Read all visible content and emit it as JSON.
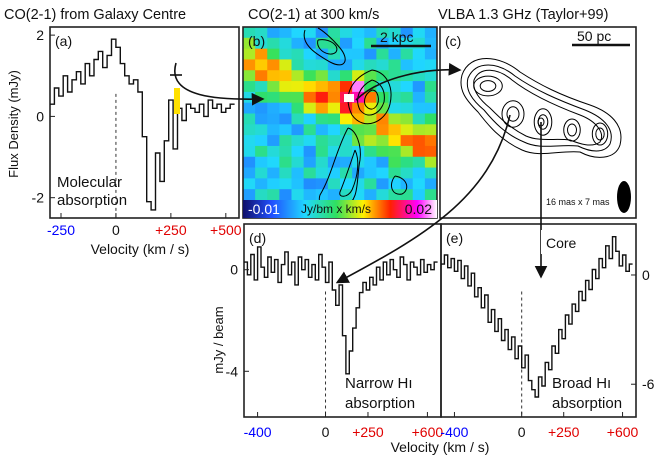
{
  "figure": {
    "header_a": "CO(2-1) from Galaxy Centre",
    "header_b": "CO(2-1) at 300 km/s",
    "header_c": "VLBA 1.3 GHz  (Taylor+99)",
    "flux_label": "Flux Density (mJy)",
    "mjy_beam_label": "mJy / beam",
    "velocity_label_top": "Velocity (km / s)",
    "velocity_label_bottom": "Velocity (km / s)",
    "core_label": "Core"
  },
  "colors": {
    "blue": "#0000ff",
    "red": "#e00000",
    "black": "#111111",
    "yellow": "#ffe000"
  },
  "chart_data": [
    {
      "id": "a",
      "type": "line",
      "panel_label": "(a)",
      "annotation": [
        "Molecular",
        "absorption"
      ],
      "x_range": [
        -300,
        560
      ],
      "y_range": [
        -2.5,
        2.2
      ],
      "x_ticks": [
        {
          "v": -250,
          "label": "-250",
          "color": "#0000ff"
        },
        {
          "v": 0,
          "label": "0",
          "color": "#111111"
        },
        {
          "v": 250,
          "label": "+250",
          "color": "#e00000"
        },
        {
          "v": 500,
          "label": "+500",
          "color": "#e00000"
        }
      ],
      "y_ticks": [
        {
          "v": 2,
          "label": "2"
        },
        {
          "v": 0,
          "label": "0"
        },
        {
          "v": -2,
          "label": "-2"
        }
      ],
      "x": [
        -290,
        -270,
        -250,
        -230,
        -210,
        -190,
        -170,
        -150,
        -130,
        -110,
        -90,
        -70,
        -50,
        -30,
        -10,
        10,
        30,
        50,
        70,
        90,
        110,
        130,
        150,
        170,
        190,
        210,
        230,
        250,
        270,
        290,
        310,
        330,
        350,
        370,
        390,
        410,
        430,
        450,
        470,
        490,
        510,
        530
      ],
      "y": [
        0.3,
        0.7,
        0.5,
        1.0,
        0.6,
        0.9,
        1.1,
        0.8,
        1.3,
        1.0,
        1.4,
        1.6,
        1.2,
        1.5,
        1.9,
        1.7,
        1.3,
        1.0,
        0.8,
        0.9,
        0.6,
        -0.5,
        -2.1,
        -2.3,
        -0.9,
        -1.6,
        -0.6,
        0.4,
        -0.8,
        0.2,
        -0.1,
        0.3,
        0.2,
        0.1,
        0.3,
        0.0,
        0.4,
        0.2,
        0.3,
        0.1,
        0.2,
        0.3
      ]
    },
    {
      "id": "b",
      "type": "heatmap",
      "panel_label": "(b)",
      "scale_bar": "2 kpc",
      "colorbar_min": "-0.01",
      "colorbar_unit": "Jy/bm x km/s",
      "colorbar_max": "0.02",
      "value_range": [
        -0.01,
        0.02
      ]
    },
    {
      "id": "c",
      "type": "other",
      "panel_label": "(c)",
      "scale_bar": "50 pc",
      "beam_label": "16 mas x 7 mas"
    },
    {
      "id": "d",
      "type": "line",
      "panel_label": "(d)",
      "annotation": [
        "Narrow Hı",
        "absorption"
      ],
      "x_range": [
        -480,
        680
      ],
      "y_range": [
        -5.8,
        1.8
      ],
      "x_ticks": [
        {
          "v": -400,
          "label": "-400",
          "color": "#0000ff"
        },
        {
          "v": 0,
          "label": "0",
          "color": "#111111"
        },
        {
          "v": 250,
          "label": "+250",
          "color": "#e00000"
        },
        {
          "v": 600,
          "label": "+600",
          "color": "#e00000"
        }
      ],
      "y_ticks": [
        {
          "v": 0,
          "label": "0"
        },
        {
          "v": -4,
          "label": "-4"
        }
      ],
      "x": [
        -470,
        -450,
        -430,
        -410,
        -390,
        -370,
        -350,
        -330,
        -310,
        -290,
        -270,
        -250,
        -230,
        -210,
        -190,
        -170,
        -150,
        -130,
        -110,
        -90,
        -70,
        -50,
        -30,
        -10,
        10,
        30,
        50,
        70,
        90,
        110,
        130,
        150,
        170,
        190,
        210,
        230,
        250,
        270,
        290,
        310,
        330,
        350,
        370,
        390,
        410,
        430,
        450,
        470,
        490,
        510,
        530,
        550,
        570,
        590,
        610,
        630,
        650
      ],
      "y": [
        0.3,
        -0.2,
        0.6,
        -0.4,
        0.9,
        0.1,
        -0.3,
        0.5,
        -0.1,
        0.4,
        -0.5,
        0.2,
        0.7,
        -0.2,
        0.3,
        -0.6,
        0.5,
        0.0,
        0.4,
        -0.3,
        0.2,
        -0.4,
        0.6,
        0.1,
        -0.5,
        0.3,
        -0.8,
        -1.4,
        -0.6,
        -2.6,
        -4.1,
        -3.2,
        -2.3,
        -1.5,
        -0.9,
        -0.5,
        -0.8,
        -0.3,
        -0.6,
        0.1,
        -0.4,
        0.3,
        -0.2,
        0.4,
        0.0,
        -0.3,
        0.5,
        0.2,
        -0.4,
        0.3,
        0.1,
        -0.2,
        0.4,
        -0.1,
        0.2,
        0.0,
        0.3
      ]
    },
    {
      "id": "e",
      "type": "line",
      "panel_label": "(e)",
      "annotation": [
        "Broad Hı",
        "absorption"
      ],
      "x_range": [
        -480,
        680
      ],
      "y_range": [
        -7.8,
        2.8
      ],
      "x_ticks": [
        {
          "v": -400,
          "label": "-400",
          "color": "#0000ff"
        },
        {
          "v": 0,
          "label": "0",
          "color": "#111111"
        },
        {
          "v": 250,
          "label": "+250",
          "color": "#e00000"
        },
        {
          "v": 600,
          "label": "+600",
          "color": "#e00000"
        }
      ],
      "y_ticks": [
        {
          "v": 0,
          "label": "0"
        },
        {
          "v": -6,
          "label": "-6"
        }
      ],
      "x": [
        -470,
        -450,
        -430,
        -410,
        -390,
        -370,
        -350,
        -330,
        -310,
        -290,
        -270,
        -250,
        -230,
        -210,
        -190,
        -170,
        -150,
        -130,
        -110,
        -90,
        -70,
        -50,
        -30,
        -10,
        10,
        30,
        50,
        70,
        90,
        110,
        130,
        150,
        170,
        190,
        210,
        230,
        250,
        270,
        290,
        310,
        330,
        350,
        370,
        390,
        410,
        430,
        450,
        470,
        490,
        510,
        530,
        550,
        570,
        590,
        610,
        630,
        650
      ],
      "y": [
        0.6,
        1.1,
        0.4,
        0.9,
        0.2,
        0.8,
        -0.2,
        0.5,
        -0.6,
        0.1,
        -1.2,
        -0.7,
        -1.8,
        -1.1,
        -2.6,
        -1.9,
        -3.1,
        -2.4,
        -3.6,
        -3.0,
        -4.1,
        -3.4,
        -4.6,
        -3.9,
        -5.1,
        -4.4,
        -5.8,
        -6.3,
        -6.7,
        -5.6,
        -6.1,
        -4.8,
        -5.2,
        -3.9,
        -4.3,
        -3.0,
        -3.5,
        -2.2,
        -2.7,
        -1.6,
        -2.0,
        -0.9,
        -1.4,
        -0.3,
        -0.8,
        0.3,
        -0.2,
        0.9,
        0.4,
        1.6,
        0.9,
        2.1,
        1.3,
        0.5,
        1.1,
        0.2,
        0.6
      ]
    }
  ]
}
